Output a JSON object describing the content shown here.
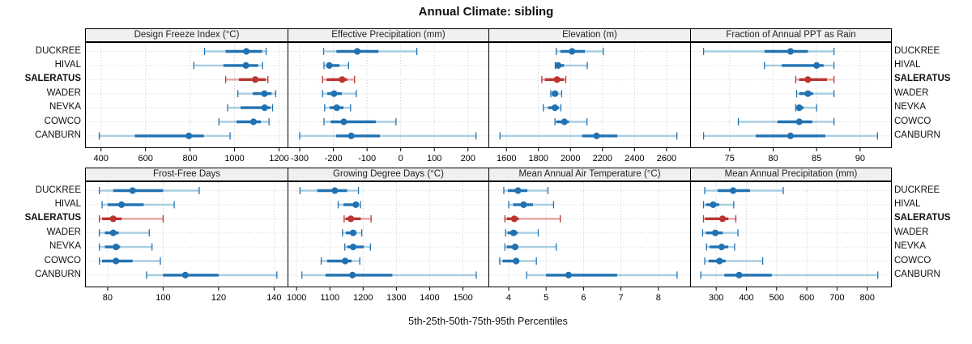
{
  "title": "Annual Climate: sibling",
  "xlabel": "5th-25th-50th-75th-95th Percentiles",
  "colors": {
    "blue": "#2272b2",
    "blue_light": "#a8cee2",
    "red": "#bc3430",
    "red_light": "#e6a29e",
    "header_bg": "#f0f0f0",
    "panel_border": "#000000",
    "grid_vertical": "#c9c9c9",
    "grid_horizontal": "#c5d3dc"
  },
  "chart_data": {
    "type": "dot-interval (percentile range)",
    "percentiles": [
      "5th",
      "25th",
      "50th",
      "75th",
      "95th"
    ],
    "stations": [
      "DUCKREE",
      "HIVAL",
      "SALERATUS",
      "WADER",
      "NEVKA",
      "COWCO",
      "CANBURN"
    ],
    "highlight_station": "SALERATUS",
    "legend_note": "values per station are [5th, 25th, 50th, 75th, 95th] percentiles",
    "panels": [
      {
        "title": "Design Freeze Index (°C)",
        "row": 0,
        "col": 0,
        "ticks": [
          400,
          600,
          800,
          1000,
          1200
        ],
        "xlim": [
          330,
          1240
        ],
        "values": {
          "DUCKREE": [
            865,
            960,
            1053,
            1124,
            1142
          ],
          "HIVAL": [
            817,
            950,
            1051,
            1106,
            1126
          ],
          "SALERATUS": [
            960,
            1020,
            1093,
            1140,
            1150
          ],
          "WADER": [
            1015,
            1082,
            1134,
            1166,
            1185
          ],
          "NEVKA": [
            969,
            1027,
            1135,
            1161,
            1171
          ],
          "COWCO": [
            930,
            1009,
            1085,
            1118,
            1155
          ],
          "CANBURN": [
            392,
            552,
            795,
            862,
            980
          ]
        }
      },
      {
        "title": "Effective Precipitation (mm)",
        "row": 0,
        "col": 1,
        "ticks": [
          -300,
          -200,
          -100,
          0,
          100,
          200
        ],
        "xlim": [
          -335,
          262
        ],
        "values": {
          "DUCKREE": [
            -229,
            -191,
            -129,
            -66,
            48
          ],
          "HIVAL": [
            -228,
            -221,
            -212,
            -182,
            -155
          ],
          "SALERATUS": [
            -232,
            -220,
            -174,
            -159,
            -137
          ],
          "WADER": [
            -232,
            -218,
            -198,
            -175,
            -132
          ],
          "NEVKA": [
            -226,
            -211,
            -190,
            -170,
            -149
          ],
          "COWCO": [
            -228,
            -208,
            -169,
            -74,
            -14
          ],
          "CANBURN": [
            -300,
            -192,
            -147,
            -62,
            224
          ]
        }
      },
      {
        "title": "Elevation (m)",
        "row": 0,
        "col": 2,
        "ticks": [
          1600,
          1800,
          2000,
          2200,
          2400,
          2600
        ],
        "xlim": [
          1490,
          2750
        ],
        "values": {
          "DUCKREE": [
            1911,
            1937,
            2010,
            2090,
            2205
          ],
          "HIVAL": [
            1905,
            1908,
            1923,
            1960,
            2105
          ],
          "SALERATUS": [
            1821,
            1840,
            1916,
            1960,
            1971
          ],
          "WADER": [
            1877,
            1886,
            1903,
            1923,
            1945
          ],
          "NEVKA": [
            1830,
            1860,
            1903,
            1928,
            1940
          ],
          "COWCO": [
            1903,
            1911,
            1962,
            1990,
            2103
          ],
          "CANBURN": [
            1560,
            2073,
            2163,
            2293,
            2665
          ]
        }
      },
      {
        "title": "Fraction of Annual PPT as Rain",
        "row": 0,
        "col": 3,
        "ticks": [
          75,
          80,
          85,
          90
        ],
        "xlim": [
          70.5,
          93.6
        ],
        "values": {
          "DUCKREE": [
            72,
            79,
            82,
            84,
            87
          ],
          "HIVAL": [
            79,
            81,
            85,
            85.8,
            87
          ],
          "SALERATUS": [
            82.6,
            83,
            84,
            86.2,
            87
          ],
          "WADER": [
            82.7,
            83,
            84,
            84.6,
            87
          ],
          "NEVKA": [
            82.6,
            82.8,
            83,
            83.5,
            85
          ],
          "COWCO": [
            76,
            80.5,
            83,
            84.5,
            87
          ],
          "CANBURN": [
            72,
            78,
            82,
            86,
            92
          ]
        }
      },
      {
        "title": "Frost-Free Days",
        "row": 1,
        "col": 0,
        "ticks": [
          80,
          100,
          120,
          140
        ],
        "xlim": [
          72,
          145
        ],
        "values": {
          "DUCKREE": [
            77,
            82,
            89,
            100,
            113
          ],
          "HIVAL": [
            78,
            80,
            85,
            93,
            104
          ],
          "SALERATUS": [
            77,
            78,
            82,
            85,
            100
          ],
          "WADER": [
            77,
            79,
            82,
            84,
            95
          ],
          "NEVKA": [
            77,
            79,
            83,
            84.5,
            96
          ],
          "COWCO": [
            77,
            78,
            83,
            89,
            99
          ],
          "CANBURN": [
            94,
            100,
            108,
            120,
            141
          ]
        }
      },
      {
        "title": "Growing Degree Days (°C)",
        "row": 1,
        "col": 1,
        "ticks": [
          1000,
          1100,
          1200,
          1300,
          1400,
          1500
        ],
        "xlim": [
          974,
          1578
        ],
        "values": {
          "DUCKREE": [
            1010,
            1062,
            1115,
            1152,
            1186
          ],
          "HIVAL": [
            1125,
            1141,
            1178,
            1184,
            1192
          ],
          "SALERATUS": [
            1143,
            1147,
            1163,
            1193,
            1224
          ],
          "WADER": [
            1138,
            1148,
            1170,
            1180,
            1196
          ],
          "NEVKA": [
            1145,
            1152,
            1170,
            1202,
            1222
          ],
          "COWCO": [
            1074,
            1092,
            1146,
            1165,
            1190
          ],
          "CANBURN": [
            1016,
            1087,
            1168,
            1288,
            1540
          ]
        }
      },
      {
        "title": "Mean Annual Air Temperature (°C)",
        "row": 1,
        "col": 2,
        "ticks": [
          4,
          5,
          6,
          7,
          8
        ],
        "xlim": [
          3.47,
          8.86
        ],
        "values": {
          "DUCKREE": [
            3.87,
            3.98,
            4.25,
            4.5,
            5.05
          ],
          "HIVAL": [
            4.0,
            4.12,
            4.4,
            4.65,
            5.2
          ],
          "SALERATUS": [
            3.9,
            3.95,
            4.15,
            4.27,
            5.38
          ],
          "WADER": [
            3.92,
            3.97,
            4.13,
            4.24,
            4.79
          ],
          "NEVKA": [
            3.9,
            3.95,
            4.17,
            4.26,
            5.27
          ],
          "COWCO": [
            3.76,
            3.84,
            4.2,
            4.27,
            4.74
          ],
          "CANBURN": [
            4.48,
            5.0,
            5.6,
            6.9,
            8.5
          ]
        }
      },
      {
        "title": "Mean Annual Precipitation (mm)",
        "row": 1,
        "col": 3,
        "ticks": [
          300,
          400,
          500,
          600,
          700,
          800
        ],
        "xlim": [
          215,
          880
        ],
        "values": {
          "DUCKREE": [
            262,
            305,
            356,
            412,
            522
          ],
          "HIVAL": [
            258,
            266,
            290,
            310,
            358
          ],
          "SALERATUS": [
            258,
            263,
            321,
            340,
            365
          ],
          "WADER": [
            255,
            266,
            297,
            322,
            372
          ],
          "NEVKA": [
            268,
            278,
            318,
            340,
            361
          ],
          "COWCO": [
            262,
            275,
            311,
            331,
            454
          ],
          "CANBURN": [
            249,
            327,
            376,
            484,
            835
          ]
        }
      }
    ]
  }
}
